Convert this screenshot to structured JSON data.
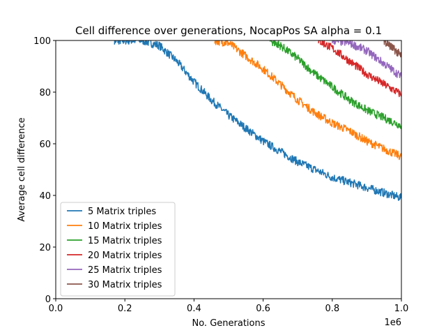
{
  "chart_data": {
    "type": "line",
    "title": "Cell difference over generations, NocapPos SA alpha = 0.1",
    "xlabel": "No. Generations",
    "ylabel": "Average cell difference",
    "x_offset_label": "1e6",
    "xlim": [
      0,
      1000000
    ],
    "ylim": [
      0,
      100
    ],
    "x_ticks": [
      0,
      200000,
      400000,
      600000,
      800000,
      1000000
    ],
    "x_tick_labels": [
      "0.0",
      "0.2",
      "0.4",
      "0.6",
      "0.8",
      "1.0"
    ],
    "y_ticks": [
      0,
      20,
      40,
      60,
      80,
      100
    ],
    "y_tick_labels": [
      "0",
      "20",
      "40",
      "60",
      "80",
      "100"
    ],
    "grid": false,
    "legend_position": "lower-left",
    "series": [
      {
        "name": "5 Matrix triples",
        "color": "#1f77b4",
        "x": [
          170000,
          200000,
          250000,
          300000,
          350000,
          400000,
          450000,
          500000,
          550000,
          600000,
          650000,
          700000,
          750000,
          800000,
          850000,
          900000,
          950000,
          1000000
        ],
        "y": [
          100,
          100,
          100,
          98,
          92,
          84,
          77,
          71,
          66,
          61,
          57,
          53,
          50,
          47,
          45,
          43,
          41,
          39
        ]
      },
      {
        "name": "10 Matrix triples",
        "color": "#ff7f0e",
        "x": [
          460000,
          500000,
          550000,
          600000,
          650000,
          700000,
          750000,
          800000,
          850000,
          900000,
          950000,
          1000000
        ],
        "y": [
          100,
          99,
          94,
          89,
          83,
          77,
          72,
          68,
          65,
          61,
          58,
          55
        ]
      },
      {
        "name": "15 Matrix triples",
        "color": "#2ca02c",
        "x": [
          620000,
          650000,
          700000,
          750000,
          800000,
          850000,
          900000,
          950000,
          1000000
        ],
        "y": [
          100,
          98,
          93,
          87,
          82,
          77,
          73,
          70,
          67
        ]
      },
      {
        "name": "20 Matrix triples",
        "color": "#d62728",
        "x": [
          760000,
          800000,
          850000,
          900000,
          950000,
          1000000
        ],
        "y": [
          100,
          97,
          92,
          87,
          83,
          79
        ]
      },
      {
        "name": "25 Matrix triples",
        "color": "#9467bd",
        "x": [
          800000,
          850000,
          900000,
          950000,
          1000000
        ],
        "y": [
          100,
          99,
          96,
          91,
          86
        ]
      },
      {
        "name": "30 Matrix triples",
        "color": "#8c564b",
        "x": [
          950000,
          975000,
          1000000
        ],
        "y": [
          100,
          97,
          94
        ]
      }
    ]
  }
}
